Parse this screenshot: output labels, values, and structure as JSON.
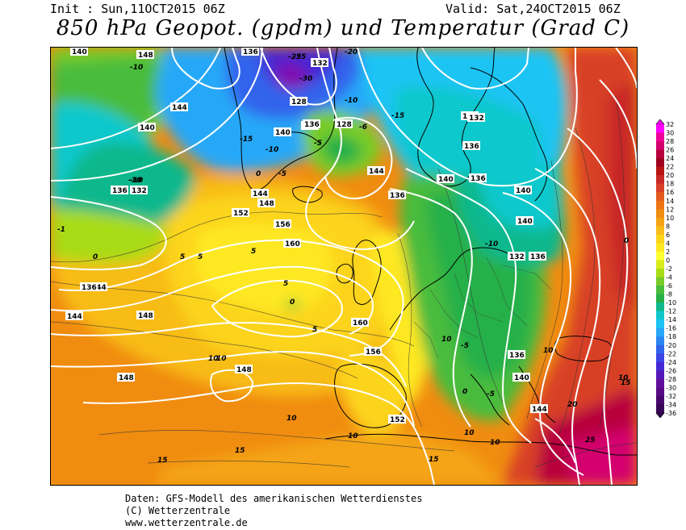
{
  "header": {
    "init": "Init : Sun,11OCT2015 06Z",
    "valid": "Valid: Sat,24OCT2015 06Z",
    "title": "850 hPa Geopot. (gpdm) und Temperatur (Grad C)"
  },
  "legend": {
    "labels": [
      "32",
      "30",
      "28",
      "26",
      "24",
      "22",
      "20",
      "18",
      "16",
      "14",
      "12",
      "10",
      "8",
      "6",
      "4",
      "2",
      "0",
      "-2",
      "-4",
      "-6",
      "-8",
      "-10",
      "-12",
      "-14",
      "-16",
      "-18",
      "-20",
      "-22",
      "-24",
      "-26",
      "-28",
      "-30",
      "-32",
      "-34",
      "-36"
    ],
    "colors": [
      "#ff00ff",
      "#ee0099",
      "#d4006e",
      "#b8003c",
      "#a0001e",
      "#b81414",
      "#c82828",
      "#d84028",
      "#e45a20",
      "#ec7414",
      "#f08c10",
      "#f4a414",
      "#f8bc18",
      "#fcd41c",
      "#fee820",
      "#ffff33",
      "#d8ec1c",
      "#a8dc14",
      "#78cc28",
      "#48bc3c",
      "#28b048",
      "#10b88c",
      "#10c8cc",
      "#1cc4f4",
      "#28a8f8",
      "#2c86f4",
      "#3264ec",
      "#3c44e4",
      "#4428d4",
      "#5418b8",
      "#60109c",
      "#580a84",
      "#48066c",
      "#380458"
    ]
  },
  "map": {
    "height_labels": [
      "140",
      "148",
      "136",
      "132",
      "128",
      "136",
      "144",
      "140",
      "140",
      "136",
      "132",
      "128",
      "136",
      "144",
      "152",
      "156",
      "160",
      "148",
      "144",
      "136",
      "140",
      "148",
      "144",
      "148",
      "160",
      "156",
      "152",
      "148",
      "144",
      "140",
      "136",
      "136",
      "132",
      "140",
      "140",
      "136",
      "132",
      "136",
      "140",
      "144",
      "136"
    ],
    "temp_labels": [
      "-10",
      "-25",
      "-20",
      "-35",
      "-30",
      "-10",
      "-15",
      "-15",
      "-10",
      "-5",
      "-5",
      "-6",
      "0",
      "-10",
      "-10",
      "-1",
      "0",
      "5",
      "5",
      "5",
      "5",
      "0",
      "5",
      "10",
      "10",
      "10",
      "-10",
      "-5",
      "10",
      "0",
      "10",
      "10",
      "10",
      "10",
      "15",
      "15",
      "15",
      "20",
      "25",
      "15",
      "10",
      "-5",
      "0"
    ]
  },
  "footer": {
    "line1": "Daten: GFS-Modell des amerikanischen Wetterdienstes",
    "line2": "(C) Wetterzentrale",
    "line3": "www.wetterzentrale.de"
  }
}
